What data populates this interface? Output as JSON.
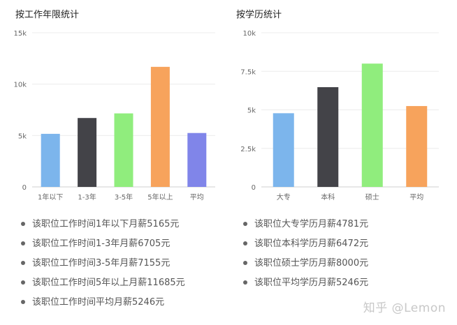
{
  "chart_data": [
    {
      "type": "bar",
      "title": "按工作年限统计",
      "categories": [
        "1年以下",
        "1-3年",
        "3-5年",
        "5年以上",
        "平均"
      ],
      "values": [
        5165,
        6705,
        7155,
        11685,
        5246
      ],
      "colors": [
        "#7cb5ec",
        "#434348",
        "#90ed7d",
        "#f7a35c",
        "#8085e9"
      ],
      "yticks": [
        "0",
        "5k",
        "10k",
        "15k"
      ],
      "ylim": [
        0,
        15000
      ],
      "grid": true
    },
    {
      "type": "bar",
      "title": "按学历统计",
      "categories": [
        "大专",
        "本科",
        "硕士",
        "平均"
      ],
      "values": [
        4781,
        6472,
        8000,
        5246
      ],
      "colors": [
        "#7cb5ec",
        "#434348",
        "#90ed7d",
        "#f7a35c"
      ],
      "yticks": [
        "0",
        "2.5k",
        "5k",
        "7.5k",
        "10k"
      ],
      "ylim": [
        0,
        10000
      ],
      "grid": true
    }
  ],
  "notes_left": [
    "该职位工作时间1年以下月薪5165元",
    "该职位工作时间1-3年月薪6705元",
    "该职位工作时间3-5年月薪7155元",
    "该职位工作时间5年以上月薪11685元",
    "该职位工作时间平均月薪5246元"
  ],
  "notes_right": [
    "该职位大专学历月薪4781元",
    "该职位本科学历月薪6472元",
    "该职位硕士学历月薪8000元",
    "该职位平均学历月薪5246元"
  ],
  "watermark": "知乎 @Lemon"
}
